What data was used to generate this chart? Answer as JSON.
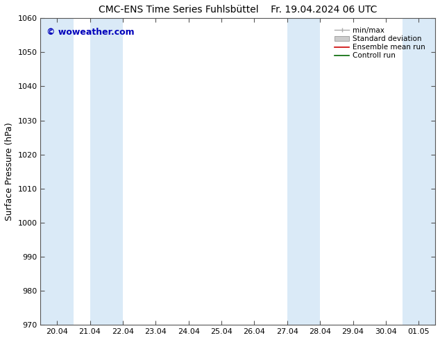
{
  "title": "CMC-ENS Time Series Fuhlsbüttel    Fr. 19.04.2024 06 UTC",
  "ylabel": "Surface Pressure (hPa)",
  "ylim": [
    970,
    1060
  ],
  "yticks": [
    970,
    980,
    990,
    1000,
    1010,
    1020,
    1030,
    1040,
    1050,
    1060
  ],
  "xtick_labels": [
    "20.04",
    "21.04",
    "22.04",
    "23.04",
    "24.04",
    "25.04",
    "26.04",
    "27.04",
    "28.04",
    "29.04",
    "30.04",
    "01.05"
  ],
  "xtick_positions": [
    0,
    1,
    2,
    3,
    4,
    5,
    6,
    7,
    8,
    9,
    10,
    11
  ],
  "xlim": [
    -0.5,
    11.5
  ],
  "shaded_bands": [
    {
      "x_start": -0.5,
      "x_end": 0.5,
      "color": "#daeaf7"
    },
    {
      "x_start": 1.0,
      "x_end": 2.0,
      "color": "#daeaf7"
    },
    {
      "x_start": 7.0,
      "x_end": 8.0,
      "color": "#daeaf7"
    },
    {
      "x_start": 10.5,
      "x_end": 11.5,
      "color": "#daeaf7"
    }
  ],
  "watermark": "© woweather.com",
  "watermark_color": "#0000bb",
  "legend_items": [
    {
      "label": "min/max",
      "type": "hline",
      "color": "#aaaaaa"
    },
    {
      "label": "Standard deviation",
      "type": "fill",
      "color": "#cccccc"
    },
    {
      "label": "Ensemble mean run",
      "type": "line",
      "color": "#cc0000"
    },
    {
      "label": "Controll run",
      "type": "line",
      "color": "#006600"
    }
  ],
  "background_color": "#ffffff",
  "plot_bg_color": "#ffffff",
  "title_fontsize": 10,
  "ylabel_fontsize": 9,
  "tick_fontsize": 8,
  "legend_fontsize": 7.5
}
